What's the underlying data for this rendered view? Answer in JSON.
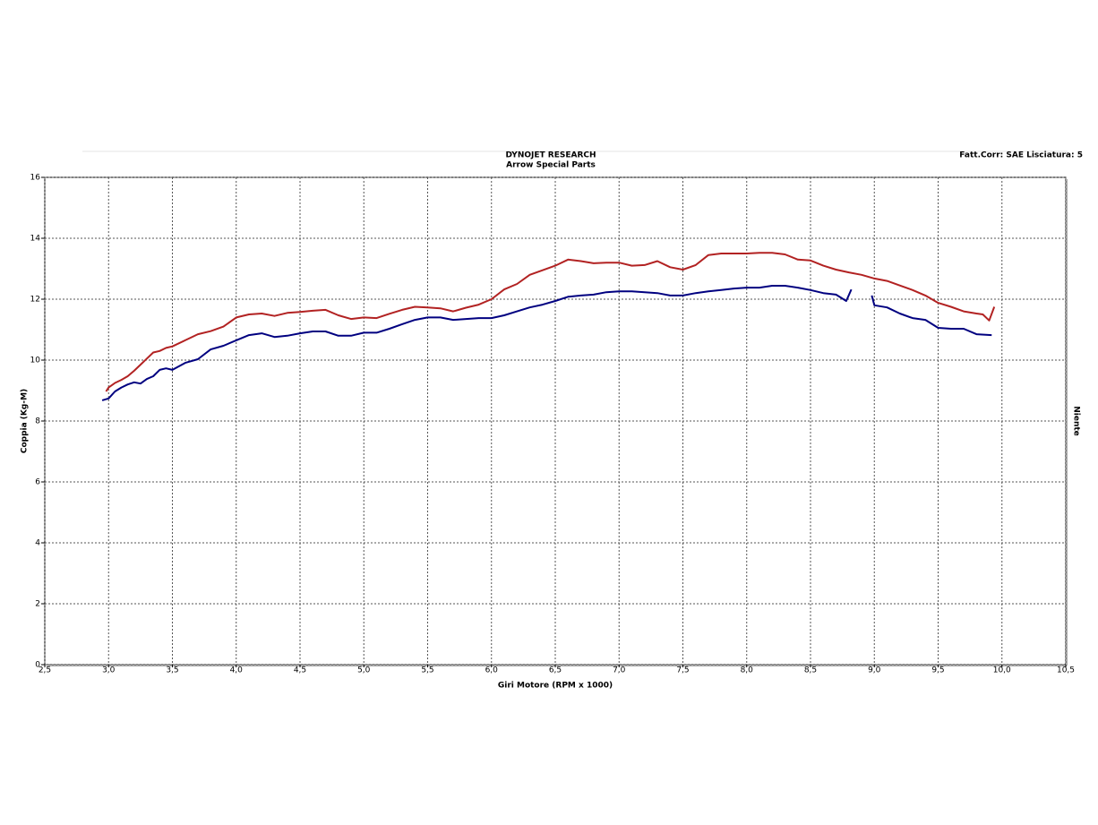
{
  "chart_data": {
    "type": "line",
    "title": "DYNOJET RESEARCH",
    "subtitle": "Arrow Special Parts",
    "annotation": "Fatt.Corr: SAE  Lisciatura: 5",
    "right_label": "Niente",
    "x_label": "Giri Motore (RPM x 1000)",
    "y_label": "Coppia (Kg-M)",
    "grid": true,
    "xlim": [
      2.5,
      10.5
    ],
    "ylim": [
      0,
      16
    ],
    "xticks": [
      {
        "value": 2.5,
        "label": "2,5"
      },
      {
        "value": 3.0,
        "label": "3,0"
      },
      {
        "value": 3.5,
        "label": "3,5"
      },
      {
        "value": 4.0,
        "label": "4,0"
      },
      {
        "value": 4.5,
        "label": "4,5"
      },
      {
        "value": 5.0,
        "label": "5,0"
      },
      {
        "value": 5.5,
        "label": "5,5"
      },
      {
        "value": 6.0,
        "label": "6,0"
      },
      {
        "value": 6.5,
        "label": "6,5"
      },
      {
        "value": 7.0,
        "label": "7,0"
      },
      {
        "value": 7.5,
        "label": "7,5"
      },
      {
        "value": 8.0,
        "label": "8,0"
      },
      {
        "value": 8.5,
        "label": "8,5"
      },
      {
        "value": 9.0,
        "label": "9,0"
      },
      {
        "value": 9.5,
        "label": "9,5"
      },
      {
        "value": 10.0,
        "label": "10,0"
      },
      {
        "value": 10.5,
        "label": "10,5"
      }
    ],
    "yticks": [
      0,
      2,
      4,
      6,
      8,
      10,
      12,
      14,
      16
    ],
    "series": [
      {
        "color": "#b22222",
        "x": [
          2.98,
          3.0,
          3.05,
          3.1,
          3.15,
          3.2,
          3.25,
          3.3,
          3.35,
          3.4,
          3.45,
          3.5,
          3.6,
          3.7,
          3.8,
          3.9,
          4.0,
          4.1,
          4.2,
          4.3,
          4.4,
          4.5,
          4.6,
          4.7,
          4.8,
          4.9,
          5.0,
          5.1,
          5.2,
          5.3,
          5.4,
          5.5,
          5.6,
          5.7,
          5.8,
          5.9,
          6.0,
          6.1,
          6.2,
          6.3,
          6.4,
          6.5,
          6.6,
          6.7,
          6.8,
          6.9,
          7.0,
          7.1,
          7.2,
          7.3,
          7.4,
          7.5,
          7.6,
          7.7,
          7.8,
          7.9,
          8.0,
          8.1,
          8.2,
          8.3,
          8.4,
          8.5,
          8.6,
          8.7,
          8.8,
          8.9,
          9.0,
          9.1,
          9.2,
          9.3,
          9.4,
          9.5,
          9.6,
          9.7,
          9.8,
          9.85,
          9.9,
          9.94
        ],
        "values": [
          8.97,
          9.1,
          9.25,
          9.35,
          9.47,
          9.65,
          9.85,
          10.05,
          10.25,
          10.3,
          10.4,
          10.45,
          10.65,
          10.85,
          10.95,
          11.1,
          11.4,
          11.5,
          11.53,
          11.45,
          11.55,
          11.58,
          11.62,
          11.65,
          11.47,
          11.35,
          11.4,
          11.38,
          11.52,
          11.65,
          11.75,
          11.73,
          11.7,
          11.6,
          11.72,
          11.82,
          12.0,
          12.32,
          12.5,
          12.8,
          12.95,
          13.1,
          13.3,
          13.25,
          13.18,
          13.2,
          13.2,
          13.1,
          13.12,
          13.25,
          13.05,
          12.97,
          13.12,
          13.45,
          13.5,
          13.5,
          13.5,
          13.52,
          13.52,
          13.47,
          13.3,
          13.27,
          13.1,
          12.97,
          12.88,
          12.8,
          12.68,
          12.6,
          12.45,
          12.3,
          12.12,
          11.88,
          11.75,
          11.6,
          11.53,
          11.5,
          11.3,
          11.75
        ]
      },
      {
        "color": "#000080",
        "x": [
          2.95,
          3.0,
          3.05,
          3.1,
          3.15,
          3.2,
          3.25,
          3.3,
          3.35,
          3.4,
          3.45,
          3.5,
          3.6,
          3.7,
          3.8,
          3.9,
          4.0,
          4.1,
          4.2,
          4.3,
          4.4,
          4.5,
          4.6,
          4.7,
          4.8,
          4.9,
          5.0,
          5.1,
          5.2,
          5.3,
          5.4,
          5.5,
          5.6,
          5.7,
          5.8,
          5.9,
          6.0,
          6.1,
          6.2,
          6.3,
          6.4,
          6.5,
          6.6,
          6.7,
          6.8,
          6.9,
          7.0,
          7.1,
          7.2,
          7.3,
          7.4,
          7.5,
          7.6,
          7.7,
          7.8,
          7.9,
          8.0,
          8.1,
          8.2,
          8.3,
          8.4,
          8.5,
          8.6,
          8.7,
          8.78,
          8.82,
          8.9,
          8.98,
          9.0,
          9.1,
          9.2,
          9.3,
          9.4,
          9.5,
          9.6,
          9.7,
          9.8,
          9.92
        ],
        "values": [
          8.68,
          8.74,
          8.97,
          9.1,
          9.2,
          9.27,
          9.23,
          9.38,
          9.47,
          9.68,
          9.73,
          9.68,
          9.91,
          10.03,
          10.35,
          10.47,
          10.65,
          10.82,
          10.88,
          10.76,
          10.8,
          10.88,
          10.94,
          10.94,
          10.8,
          10.8,
          10.9,
          10.9,
          11.03,
          11.18,
          11.32,
          11.4,
          11.4,
          11.32,
          11.35,
          11.38,
          11.38,
          11.47,
          11.6,
          11.73,
          11.82,
          11.94,
          12.08,
          12.12,
          12.15,
          12.23,
          12.26,
          12.26,
          12.23,
          12.2,
          12.12,
          12.12,
          12.2,
          12.26,
          12.3,
          12.35,
          12.38,
          12.38,
          12.44,
          12.44,
          12.38,
          12.3,
          12.2,
          12.15,
          11.94,
          12.32,
          null,
          12.12,
          11.8,
          11.73,
          11.53,
          11.38,
          11.32,
          11.06,
          11.03,
          11.03,
          10.85,
          10.82
        ]
      }
    ]
  }
}
